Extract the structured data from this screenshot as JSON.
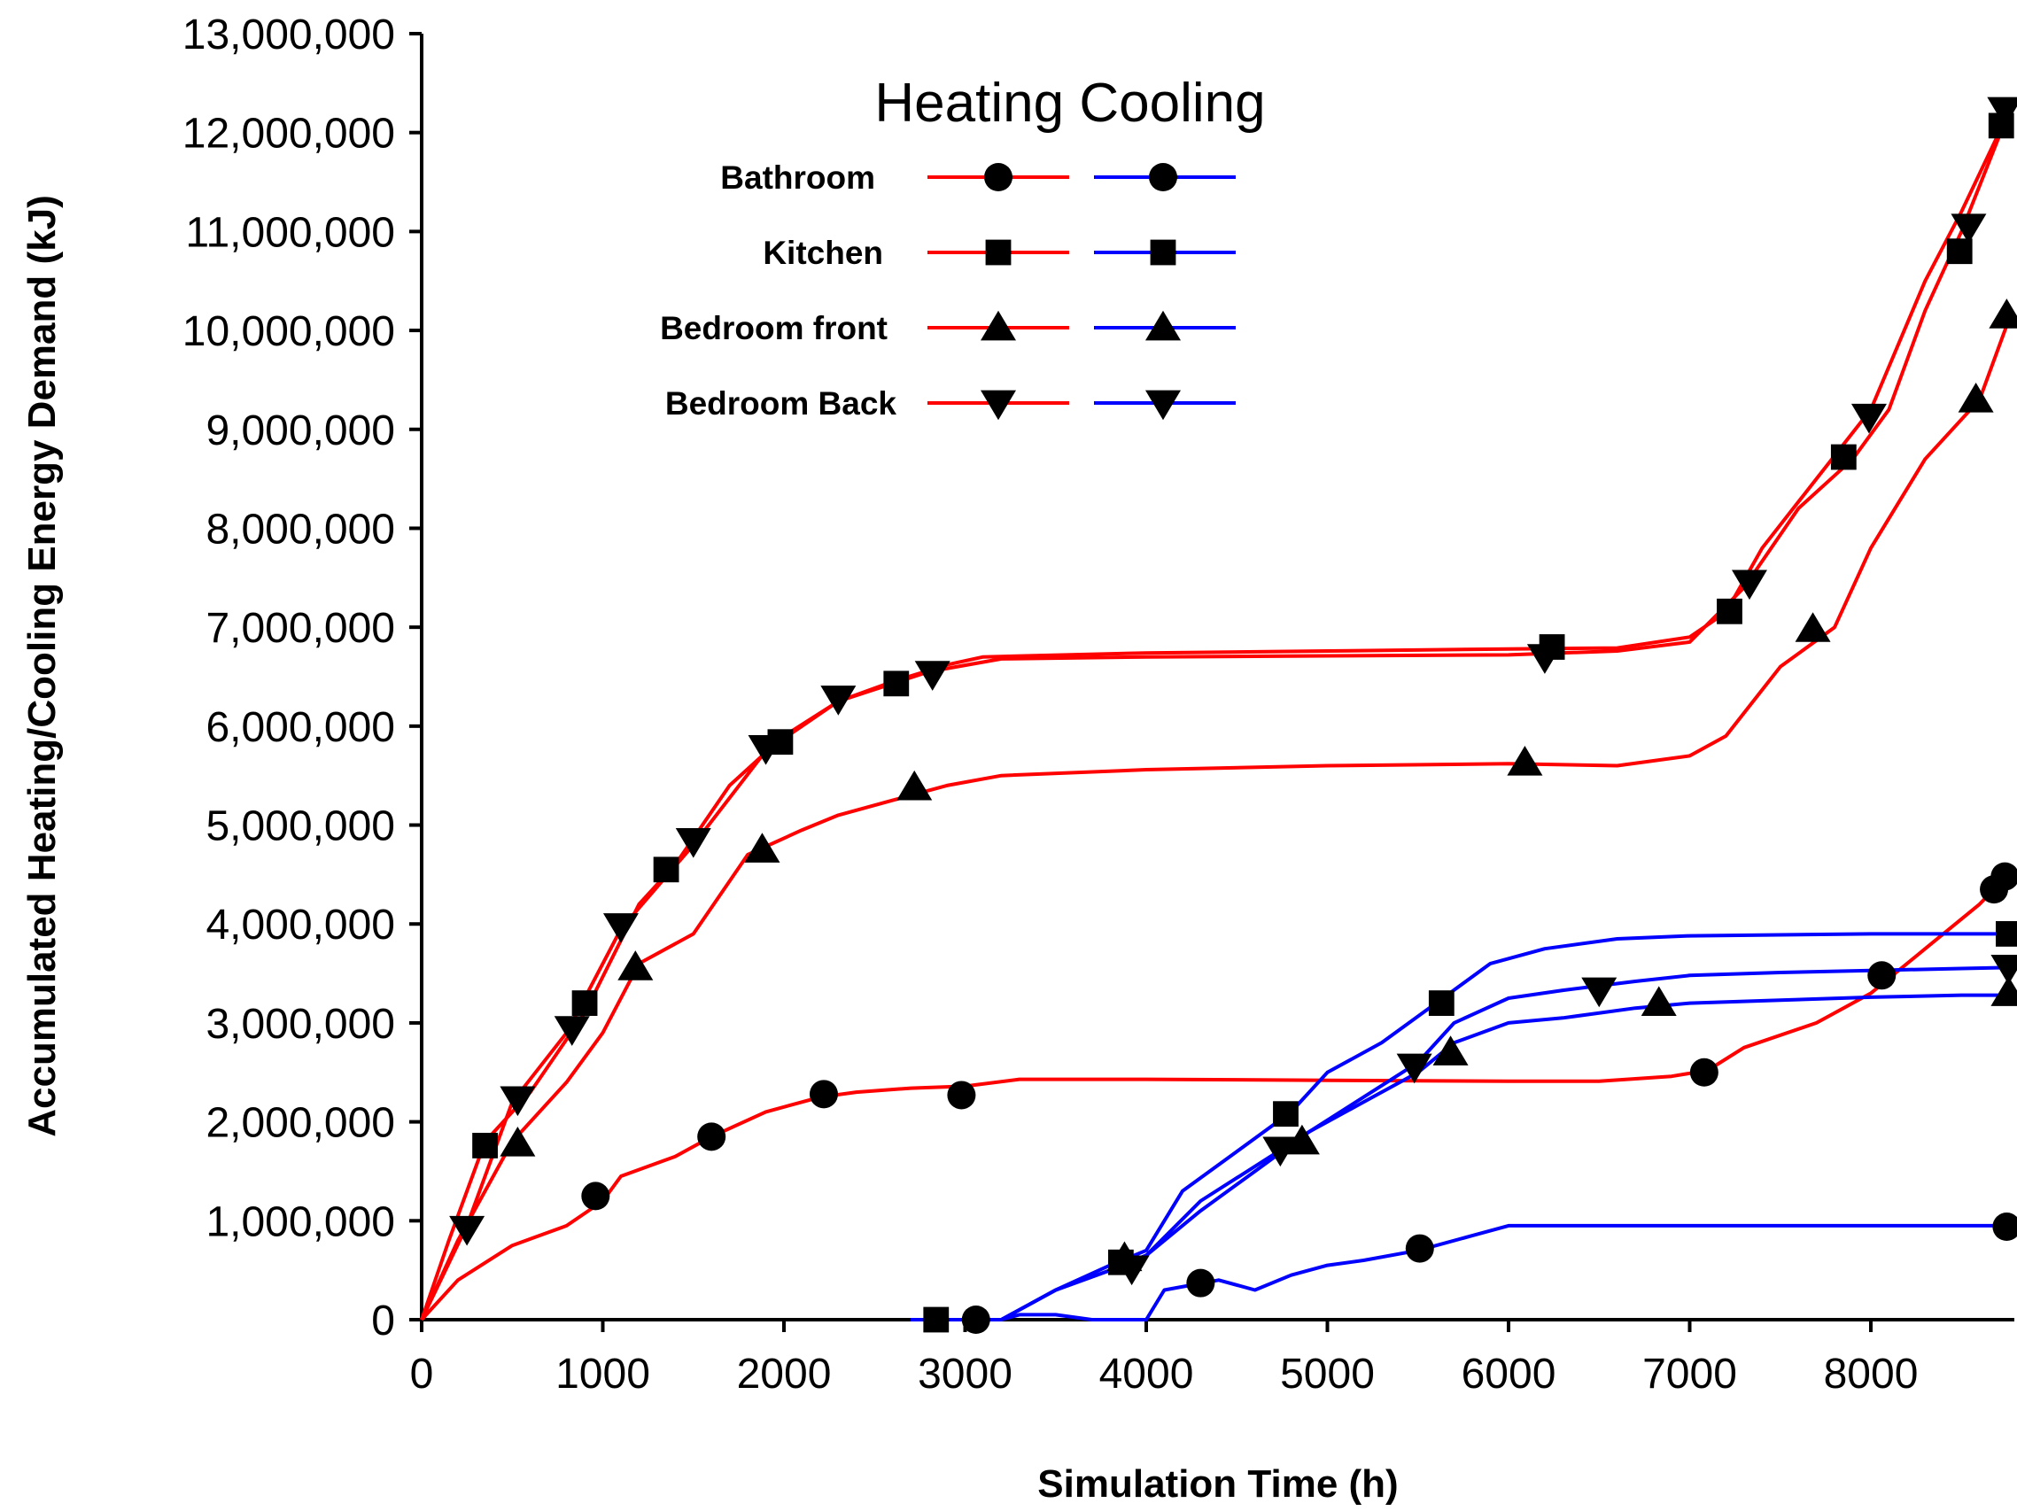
{
  "chart_data": {
    "type": "line",
    "title": "",
    "xlabel": "Simulation Time (h)",
    "ylabel": "Accumulated Heating/Cooling Energy Demand (kJ)",
    "xlim": [
      0,
      8760
    ],
    "ylim": [
      0,
      13000000
    ],
    "x_ticks": [
      0,
      1000,
      2000,
      3000,
      4000,
      5000,
      6000,
      7000,
      8000
    ],
    "x_tick_labels": [
      "0",
      "1000",
      "2000",
      "3000",
      "4000",
      "5000",
      "6000",
      "7000",
      "8000"
    ],
    "y_ticks": [
      0,
      1000000,
      2000000,
      3000000,
      4000000,
      5000000,
      6000000,
      7000000,
      8000000,
      9000000,
      10000000,
      11000000,
      12000000,
      13000000
    ],
    "y_tick_labels": [
      "0",
      "1,000,000",
      "2,000,000",
      "3,000,000",
      "4,000,000",
      "5,000,000",
      "6,000,000",
      "7,000,000",
      "8,000,000",
      "9,000,000",
      "10,000,000",
      "11,000,000",
      "12,000,000",
      "13,000,000"
    ],
    "legend": {
      "title": "Heating Cooling",
      "placement": "top-center",
      "entries": [
        "Bathroom",
        "Kitchen",
        "Bedroom front",
        "Bedroom Back"
      ]
    },
    "colors": {
      "heating": "#ff0000",
      "cooling": "#0000ff",
      "marker": "#000000"
    },
    "series": [
      {
        "name": "Bathroom",
        "kind": "Heating",
        "marker": "circle",
        "x": [
          0,
          200,
          500,
          800,
          1000,
          1100,
          1400,
          1600,
          1900,
          2200,
          2400,
          2700,
          3000,
          3300,
          4000,
          5000,
          6000,
          6500,
          6900,
          7100,
          7300,
          7700,
          8000,
          8300,
          8600,
          8760
        ],
        "y": [
          0,
          400000,
          750000,
          950000,
          1200000,
          1450000,
          1650000,
          1850000,
          2100000,
          2250000,
          2300000,
          2340000,
          2360000,
          2430000,
          2430000,
          2420000,
          2410000,
          2410000,
          2460000,
          2520000,
          2750000,
          3000000,
          3300000,
          3750000,
          4200000,
          4500000
        ],
        "marker_points": [
          [
            960,
            1250000
          ],
          [
            1600,
            1850000
          ],
          [
            2220,
            2280000
          ],
          [
            2980,
            2270000
          ],
          [
            7080,
            2500000
          ],
          [
            8060,
            3480000
          ],
          [
            8680,
            4350000
          ],
          [
            8740,
            4480000
          ]
        ]
      },
      {
        "name": "Kitchen",
        "kind": "Heating",
        "marker": "square",
        "x": [
          0,
          150,
          350,
          600,
          900,
          1200,
          1400,
          1700,
          2000,
          2300,
          2600,
          2900,
          3100,
          4000,
          5000,
          6000,
          6600,
          7000,
          7200,
          7400,
          7700,
          8000,
          8300,
          8500,
          8760
        ],
        "y": [
          0,
          800000,
          1800000,
          2300000,
          3100000,
          4200000,
          4600000,
          5400000,
          5900000,
          6250000,
          6450000,
          6620000,
          6700000,
          6740000,
          6760000,
          6780000,
          6790000,
          6900000,
          7150000,
          7800000,
          8500000,
          9200000,
          10500000,
          11200000,
          12200000
        ],
        "marker_points": [
          [
            350,
            1760000
          ],
          [
            900,
            3200000
          ],
          [
            1350,
            4550000
          ],
          [
            1980,
            5840000
          ],
          [
            2620,
            6430000
          ],
          [
            6240,
            6800000
          ],
          [
            7220,
            7160000
          ],
          [
            7850,
            8720000
          ],
          [
            8490,
            10800000
          ],
          [
            8720,
            12070000
          ]
        ]
      },
      {
        "name": "Bedroom front",
        "kind": "Heating",
        "marker": "triangle-up",
        "x": [
          0,
          200,
          500,
          800,
          1000,
          1200,
          1500,
          1800,
          2100,
          2300,
          2600,
          2900,
          3200,
          4000,
          5000,
          6000,
          6600,
          7000,
          7200,
          7500,
          7800,
          8000,
          8300,
          8600,
          8760
        ],
        "y": [
          0,
          800000,
          1800000,
          2400000,
          2900000,
          3600000,
          3900000,
          4700000,
          4950000,
          5100000,
          5250000,
          5400000,
          5500000,
          5560000,
          5600000,
          5620000,
          5600000,
          5700000,
          5900000,
          6600000,
          7000000,
          7800000,
          8700000,
          9300000,
          10100000
        ],
        "marker_points": [
          [
            530,
            1780000
          ],
          [
            1180,
            3560000
          ],
          [
            1880,
            4750000
          ],
          [
            2720,
            5380000
          ],
          [
            6090,
            5630000
          ],
          [
            7680,
            6980000
          ],
          [
            8580,
            9300000
          ],
          [
            8750,
            10150000
          ]
        ]
      },
      {
        "name": "Bedroom Back",
        "kind": "Heating",
        "marker": "triangle-down",
        "x": [
          0,
          250,
          500,
          800,
          1100,
          1500,
          1900,
          2300,
          2800,
          3200,
          4000,
          5000,
          6000,
          6600,
          7000,
          7300,
          7600,
          7900,
          8100,
          8300,
          8500,
          8760
        ],
        "y": [
          0,
          950000,
          2200000,
          2900000,
          3950000,
          4800000,
          5750000,
          6250000,
          6550000,
          6680000,
          6700000,
          6710000,
          6720000,
          6760000,
          6850000,
          7400000,
          8200000,
          8700000,
          9200000,
          10200000,
          11000000,
          12200000
        ],
        "marker_points": [
          [
            250,
            920000
          ],
          [
            530,
            2230000
          ],
          [
            830,
            2940000
          ],
          [
            1100,
            3980000
          ],
          [
            1500,
            4840000
          ],
          [
            1900,
            5780000
          ],
          [
            2300,
            6280000
          ],
          [
            2820,
            6530000
          ],
          [
            6200,
            6700000
          ],
          [
            7330,
            7450000
          ],
          [
            7990,
            9130000
          ],
          [
            8540,
            11050000
          ],
          [
            8740,
            12230000
          ]
        ]
      },
      {
        "name": "Bathroom",
        "kind": "Cooling",
        "marker": "circle",
        "x": [
          2700,
          3200,
          3300,
          3500,
          3700,
          4000,
          4100,
          4400,
          4600,
          4800,
          5000,
          5200,
          5500,
          5800,
          6000,
          6500,
          7000,
          8000,
          8760
        ],
        "y": [
          0,
          0,
          50000,
          50000,
          0,
          0,
          300000,
          400000,
          300000,
          450000,
          550000,
          600000,
          700000,
          850000,
          950000,
          950000,
          950000,
          950000,
          950000
        ],
        "marker_points": [
          [
            3060,
            0
          ],
          [
            4300,
            370000
          ],
          [
            5510,
            720000
          ],
          [
            8750,
            940000
          ]
        ]
      },
      {
        "name": "Kitchen",
        "kind": "Cooling",
        "marker": "square",
        "x": [
          2700,
          3200,
          3500,
          3800,
          4000,
          4200,
          4500,
          4800,
          5000,
          5300,
          5600,
          5900,
          6200,
          6600,
          7000,
          7500,
          8000,
          8500,
          8760
        ],
        "y": [
          0,
          0,
          300000,
          550000,
          700000,
          1300000,
          1700000,
          2100000,
          2500000,
          2800000,
          3200000,
          3600000,
          3750000,
          3850000,
          3880000,
          3890000,
          3900000,
          3900000,
          3900000
        ],
        "marker_points": [
          [
            2840,
            0
          ],
          [
            3860,
            580000
          ],
          [
            4770,
            2080000
          ],
          [
            5630,
            3200000
          ],
          [
            8760,
            3900000
          ]
        ]
      },
      {
        "name": "Bedroom front",
        "kind": "Cooling",
        "marker": "triangle-up",
        "x": [
          2700,
          3200,
          3500,
          3800,
          4000,
          4300,
          4600,
          4900,
          5200,
          5500,
          5700,
          6000,
          6300,
          6700,
          7000,
          7500,
          8000,
          8500,
          8760
        ],
        "y": [
          0,
          0,
          300000,
          500000,
          650000,
          1100000,
          1500000,
          1900000,
          2200000,
          2500000,
          2800000,
          3000000,
          3050000,
          3150000,
          3200000,
          3230000,
          3260000,
          3280000,
          3280000
        ],
        "marker_points": [
          [
            3880,
            620000
          ],
          [
            4860,
            1800000
          ],
          [
            5680,
            2700000
          ],
          [
            6830,
            3200000
          ],
          [
            8760,
            3300000
          ]
        ]
      },
      {
        "name": "Bedroom Back",
        "kind": "Cooling",
        "marker": "triangle-down",
        "x": [
          2700,
          3200,
          3500,
          3800,
          4000,
          4300,
          4600,
          4900,
          5200,
          5500,
          5700,
          6000,
          6300,
          6700,
          7000,
          7500,
          8000,
          8500,
          8760
        ],
        "y": [
          0,
          0,
          300000,
          500000,
          650000,
          1200000,
          1550000,
          1900000,
          2250000,
          2600000,
          3000000,
          3250000,
          3330000,
          3420000,
          3480000,
          3510000,
          3530000,
          3550000,
          3560000
        ],
        "marker_points": [
          [
            3920,
            520000
          ],
          [
            4740,
            1720000
          ],
          [
            5480,
            2560000
          ],
          [
            6500,
            3330000
          ],
          [
            8760,
            3560000
          ]
        ]
      }
    ]
  }
}
